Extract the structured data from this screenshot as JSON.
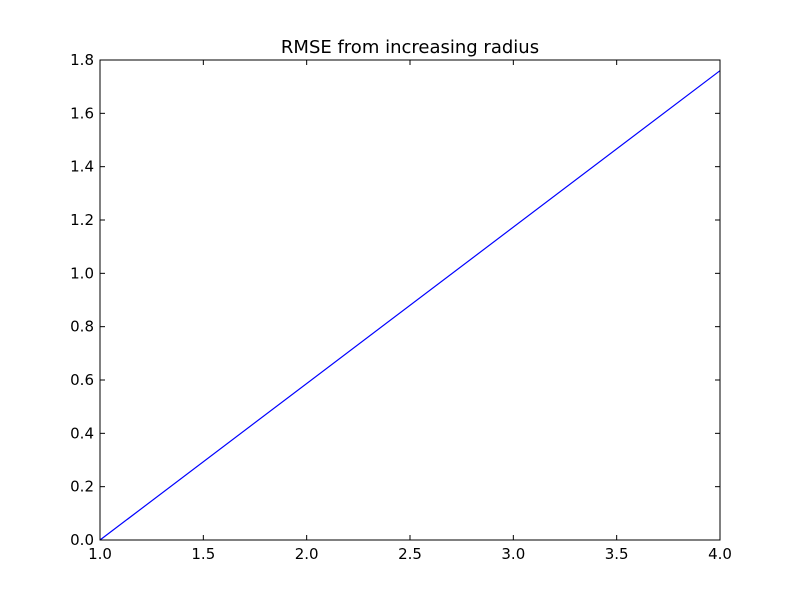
{
  "chart_data": {
    "type": "line",
    "title": "RMSE from increasing radius",
    "xlabel": "",
    "ylabel": "",
    "xlim": [
      1.0,
      4.0
    ],
    "ylim": [
      0.0,
      1.8
    ],
    "x_ticks": [
      "1.0",
      "1.5",
      "2.0",
      "2.5",
      "3.0",
      "3.5",
      "4.0"
    ],
    "y_ticks": [
      "0.0",
      "0.2",
      "0.4",
      "0.6",
      "0.8",
      "1.0",
      "1.2",
      "1.4",
      "1.6",
      "1.8"
    ],
    "grid": false,
    "series": [
      {
        "color": "#0000ff",
        "x": [
          1.0,
          4.0
        ],
        "y": [
          0.0,
          1.76
        ]
      }
    ]
  }
}
